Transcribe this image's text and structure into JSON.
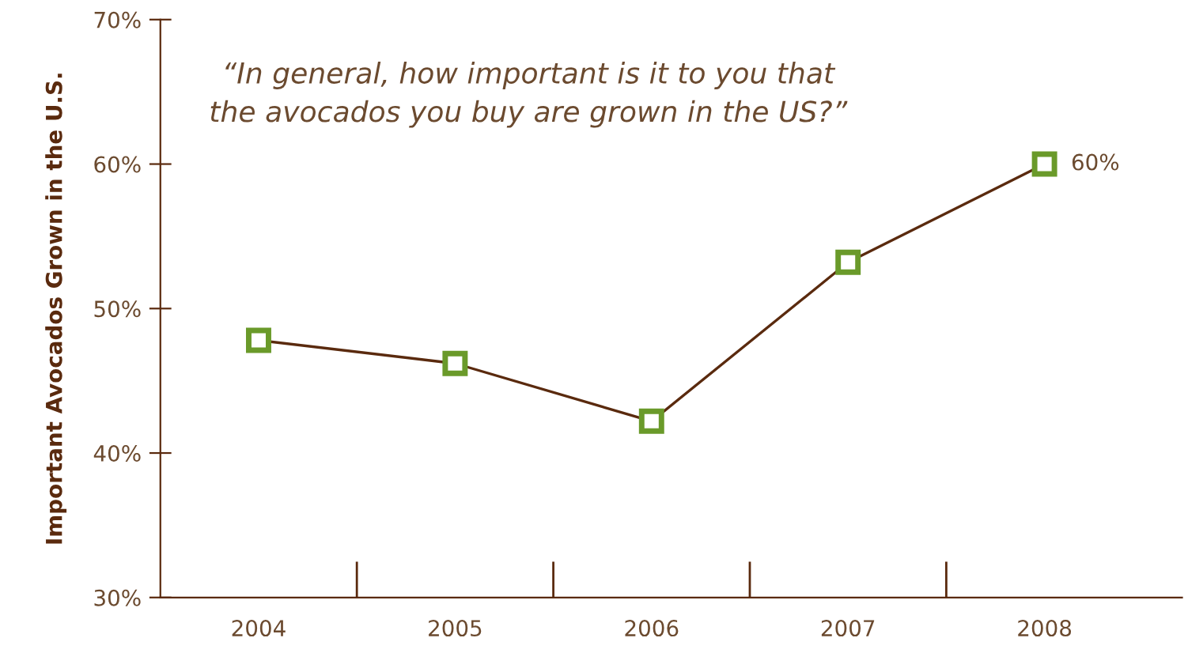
{
  "chart_data": {
    "type": "line",
    "ylabel": "Important Avocados Grown in the U.S.",
    "categories": [
      "2004",
      "2005",
      "2006",
      "2007",
      "2008"
    ],
    "series": [
      {
        "color": "#5a2a0e",
        "values": [
          47.8,
          46.2,
          42.2,
          53.2,
          60
        ],
        "value_labels": [
          null,
          null,
          null,
          null,
          "60%"
        ]
      }
    ],
    "ylim": [
      30,
      70
    ],
    "yticks": [
      {
        "value": 30,
        "label": "30%"
      },
      {
        "value": 40,
        "label": "40%"
      },
      {
        "value": 50,
        "label": "50%"
      },
      {
        "value": 60,
        "label": "60%"
      },
      {
        "value": 70,
        "label": "70%"
      }
    ],
    "marker": "square",
    "grid": false,
    "annotations": [
      "“In general, how important is it to you that\nthe avocados you buy are grown in the US?”"
    ]
  }
}
